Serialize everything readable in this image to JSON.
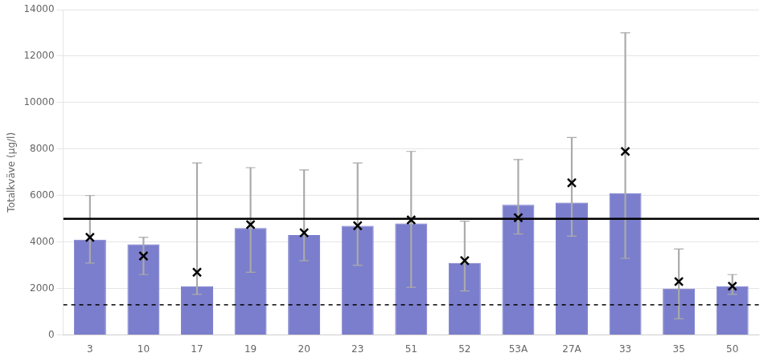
{
  "chart_data": {
    "type": "bar",
    "ylabel": "Totalkväve (µg/l)",
    "categories": [
      "3",
      "10",
      "17",
      "19",
      "20",
      "23",
      "51",
      "52",
      "53A",
      "27A",
      "33",
      "35",
      "50"
    ],
    "series": [
      {
        "type": "bar",
        "color": "#7b7ecc",
        "values": [
          4100,
          3900,
          2100,
          4600,
          4300,
          4700,
          4800,
          3100,
          5600,
          5700,
          6100,
          2000,
          2100
        ]
      },
      {
        "type": "range",
        "color": "#aaaaaa",
        "values": [
          [
            3100,
            6000
          ],
          [
            2600,
            4200
          ],
          [
            1750,
            7400
          ],
          [
            2700,
            7200
          ],
          [
            3200,
            7100
          ],
          [
            3000,
            7400
          ],
          [
            2050,
            7900
          ],
          [
            1900,
            4900
          ],
          [
            4350,
            7550
          ],
          [
            4250,
            8500
          ],
          [
            3300,
            13000
          ],
          [
            700,
            3700
          ],
          [
            1750,
            2600
          ]
        ]
      },
      {
        "type": "scatter",
        "marker": "x",
        "color": "#000000",
        "values": [
          4200,
          3400,
          2700,
          4750,
          4400,
          4700,
          4950,
          3200,
          5050,
          6550,
          7900,
          2300,
          2100
        ]
      }
    ],
    "hlines": [
      {
        "y": 5000,
        "color": "#000000",
        "line_style": "solid"
      },
      {
        "y": 1300,
        "color": "#000000",
        "line_style": "dashed"
      }
    ],
    "ylim": [
      0,
      14000
    ],
    "yticks": [
      0,
      2000,
      4000,
      6000,
      8000,
      10000,
      12000,
      14000
    ],
    "grid": true
  }
}
